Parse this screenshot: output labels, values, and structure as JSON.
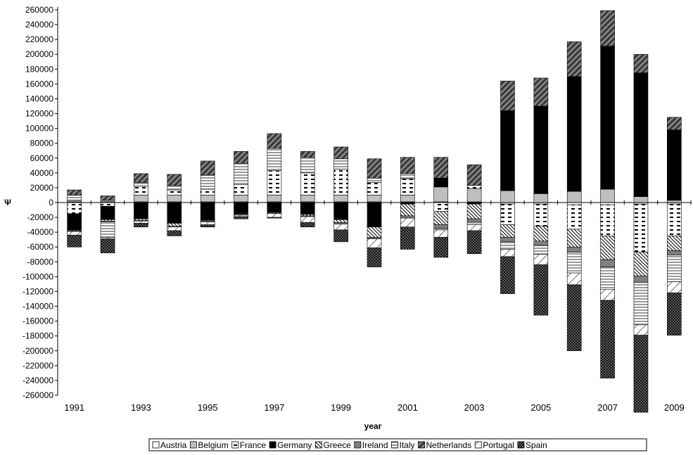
{
  "chart_data": {
    "type": "bar",
    "stacked": true,
    "diverging": true,
    "title": "",
    "xlabel": "year",
    "ylabel": "Ψ",
    "ylim": [
      -260000,
      260000
    ],
    "ytick_step": 20000,
    "categories": [
      "1991",
      "1992",
      "1993",
      "1994",
      "1995",
      "1996",
      "1997",
      "1998",
      "1999",
      "2000",
      "2001",
      "2002",
      "2003",
      "2004",
      "2005",
      "2006",
      "2007",
      "2008",
      "2009"
    ],
    "xtick_labels": [
      "1991",
      "",
      "1993",
      "",
      "1995",
      "",
      "1997",
      "",
      "1999",
      "",
      "2001",
      "",
      "2003",
      "",
      "2005",
      "",
      "2007",
      "",
      "2009"
    ],
    "legend_position": "bottom",
    "grid": false,
    "series": [
      {
        "name": "Austria",
        "pattern": "plain",
        "fill": "#ffffff",
        "values": [
          1000,
          1000,
          1000,
          1000,
          1000,
          1000,
          1000,
          1000,
          1000,
          1000,
          1000,
          1000,
          1000,
          -2000,
          -2000,
          -3000,
          -3000,
          -2000,
          -2000
        ]
      },
      {
        "name": "Belgium",
        "pattern": "plain",
        "fill": "#bfbfbf",
        "values": [
          2000,
          2000,
          9000,
          9000,
          9000,
          9000,
          9000,
          9000,
          9000,
          9000,
          9000,
          20000,
          18000,
          16000,
          12000,
          15000,
          18000,
          8000,
          3000
        ]
      },
      {
        "name": "France",
        "pattern": "dashes",
        "fill": "#ffffff",
        "values": [
          -15000,
          -5000,
          12000,
          7000,
          8000,
          14000,
          33000,
          30000,
          35000,
          17000,
          22000,
          -12000,
          4000,
          -28000,
          -30000,
          -33000,
          -42000,
          -65000,
          -43000
        ]
      },
      {
        "name": "Germany",
        "pattern": "solid",
        "fill": "#000000",
        "values": [
          -22000,
          -18000,
          -22000,
          -28000,
          -24000,
          -15000,
          -13000,
          -16000,
          -23000,
          -33000,
          -2000,
          12000,
          -2000,
          108000,
          118000,
          155000,
          193000,
          167000,
          95000
        ]
      },
      {
        "name": "Greece",
        "pattern": "diag-back",
        "fill": "#ffffff",
        "values": [
          -1000,
          -2000,
          -2000,
          -4000,
          -1000,
          -1000,
          -1000,
          -2000,
          -4000,
          -14000,
          -16000,
          -18000,
          -20000,
          -17000,
          -20000,
          -24000,
          -32000,
          -32000,
          -20000
        ]
      },
      {
        "name": "Ireland",
        "pattern": "plain",
        "fill": "#7f7f7f",
        "values": [
          -1000,
          -1000,
          -1000,
          -1000,
          -1000,
          -1000,
          -1000,
          -1000,
          -2000,
          -2000,
          -3000,
          -5000,
          -4000,
          -6000,
          -6000,
          -7000,
          -10000,
          -9000,
          -6000
        ]
      },
      {
        "name": "Italy",
        "pattern": "hlines",
        "fill": "#ffffff",
        "values": [
          7000,
          -21000,
          5000,
          6000,
          19000,
          29000,
          30000,
          21000,
          14000,
          6000,
          7000,
          -2000,
          -4000,
          -10000,
          -12000,
          -28000,
          -30000,
          -57000,
          -36000
        ]
      },
      {
        "name": "Netherlands",
        "pattern": "diag-forward",
        "fill": "#808080",
        "values": [
          7000,
          6000,
          12000,
          15000,
          19000,
          16000,
          20000,
          8000,
          16000,
          26000,
          22000,
          28000,
          28000,
          40000,
          38000,
          47000,
          48000,
          25000,
          17000
        ]
      },
      {
        "name": "Portugal",
        "pattern": "forward-light",
        "fill": "#ffffff",
        "values": [
          -5000,
          -2000,
          -3000,
          -5000,
          -4000,
          -2000,
          -5000,
          -8000,
          -8000,
          -12000,
          -12000,
          -10000,
          -8000,
          -10000,
          -14000,
          -16000,
          -15000,
          -14000,
          -15000
        ]
      },
      {
        "name": "Spain",
        "pattern": "dots",
        "fill": "#1a1a1a",
        "values": [
          -16000,
          -19000,
          -5000,
          -7000,
          -3000,
          -3000,
          -1000,
          -6000,
          -16000,
          -26000,
          -30000,
          -27000,
          -31000,
          -50000,
          -68000,
          -89000,
          -105000,
          -104000,
          -57000
        ]
      }
    ]
  }
}
